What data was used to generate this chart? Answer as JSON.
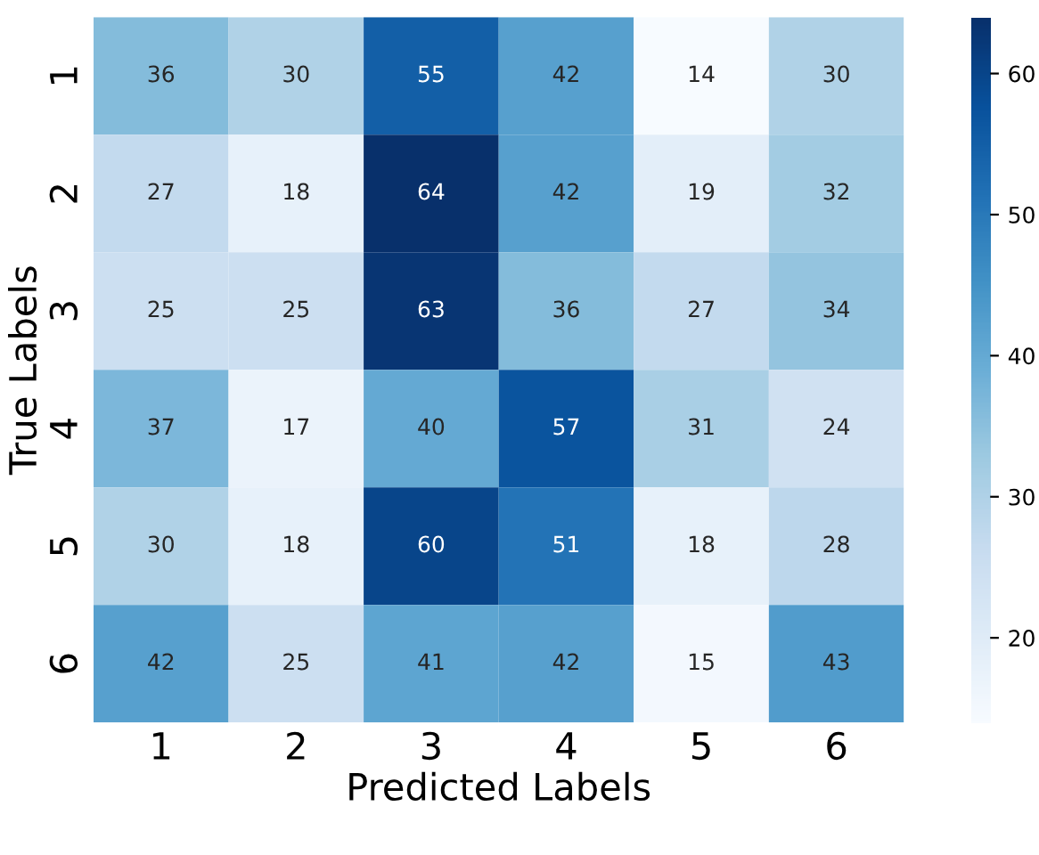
{
  "chart_data": {
    "type": "heatmap",
    "xlabel": "Predicted Labels",
    "ylabel": "True Labels",
    "categories": [
      "1",
      "2",
      "3",
      "4",
      "5",
      "6"
    ],
    "y_categories": [
      "1",
      "2",
      "3",
      "4",
      "5",
      "6"
    ],
    "cells": [
      [
        36,
        30,
        55,
        42,
        14,
        30
      ],
      [
        27,
        18,
        64,
        42,
        19,
        32
      ],
      [
        25,
        25,
        63,
        36,
        27,
        34
      ],
      [
        37,
        17,
        40,
        57,
        31,
        24
      ],
      [
        30,
        18,
        60,
        51,
        18,
        28
      ],
      [
        42,
        25,
        41,
        42,
        15,
        43
      ]
    ],
    "data_labels": true,
    "clim": [
      14,
      64
    ],
    "cticks": [
      20,
      30,
      40,
      50,
      60
    ]
  }
}
